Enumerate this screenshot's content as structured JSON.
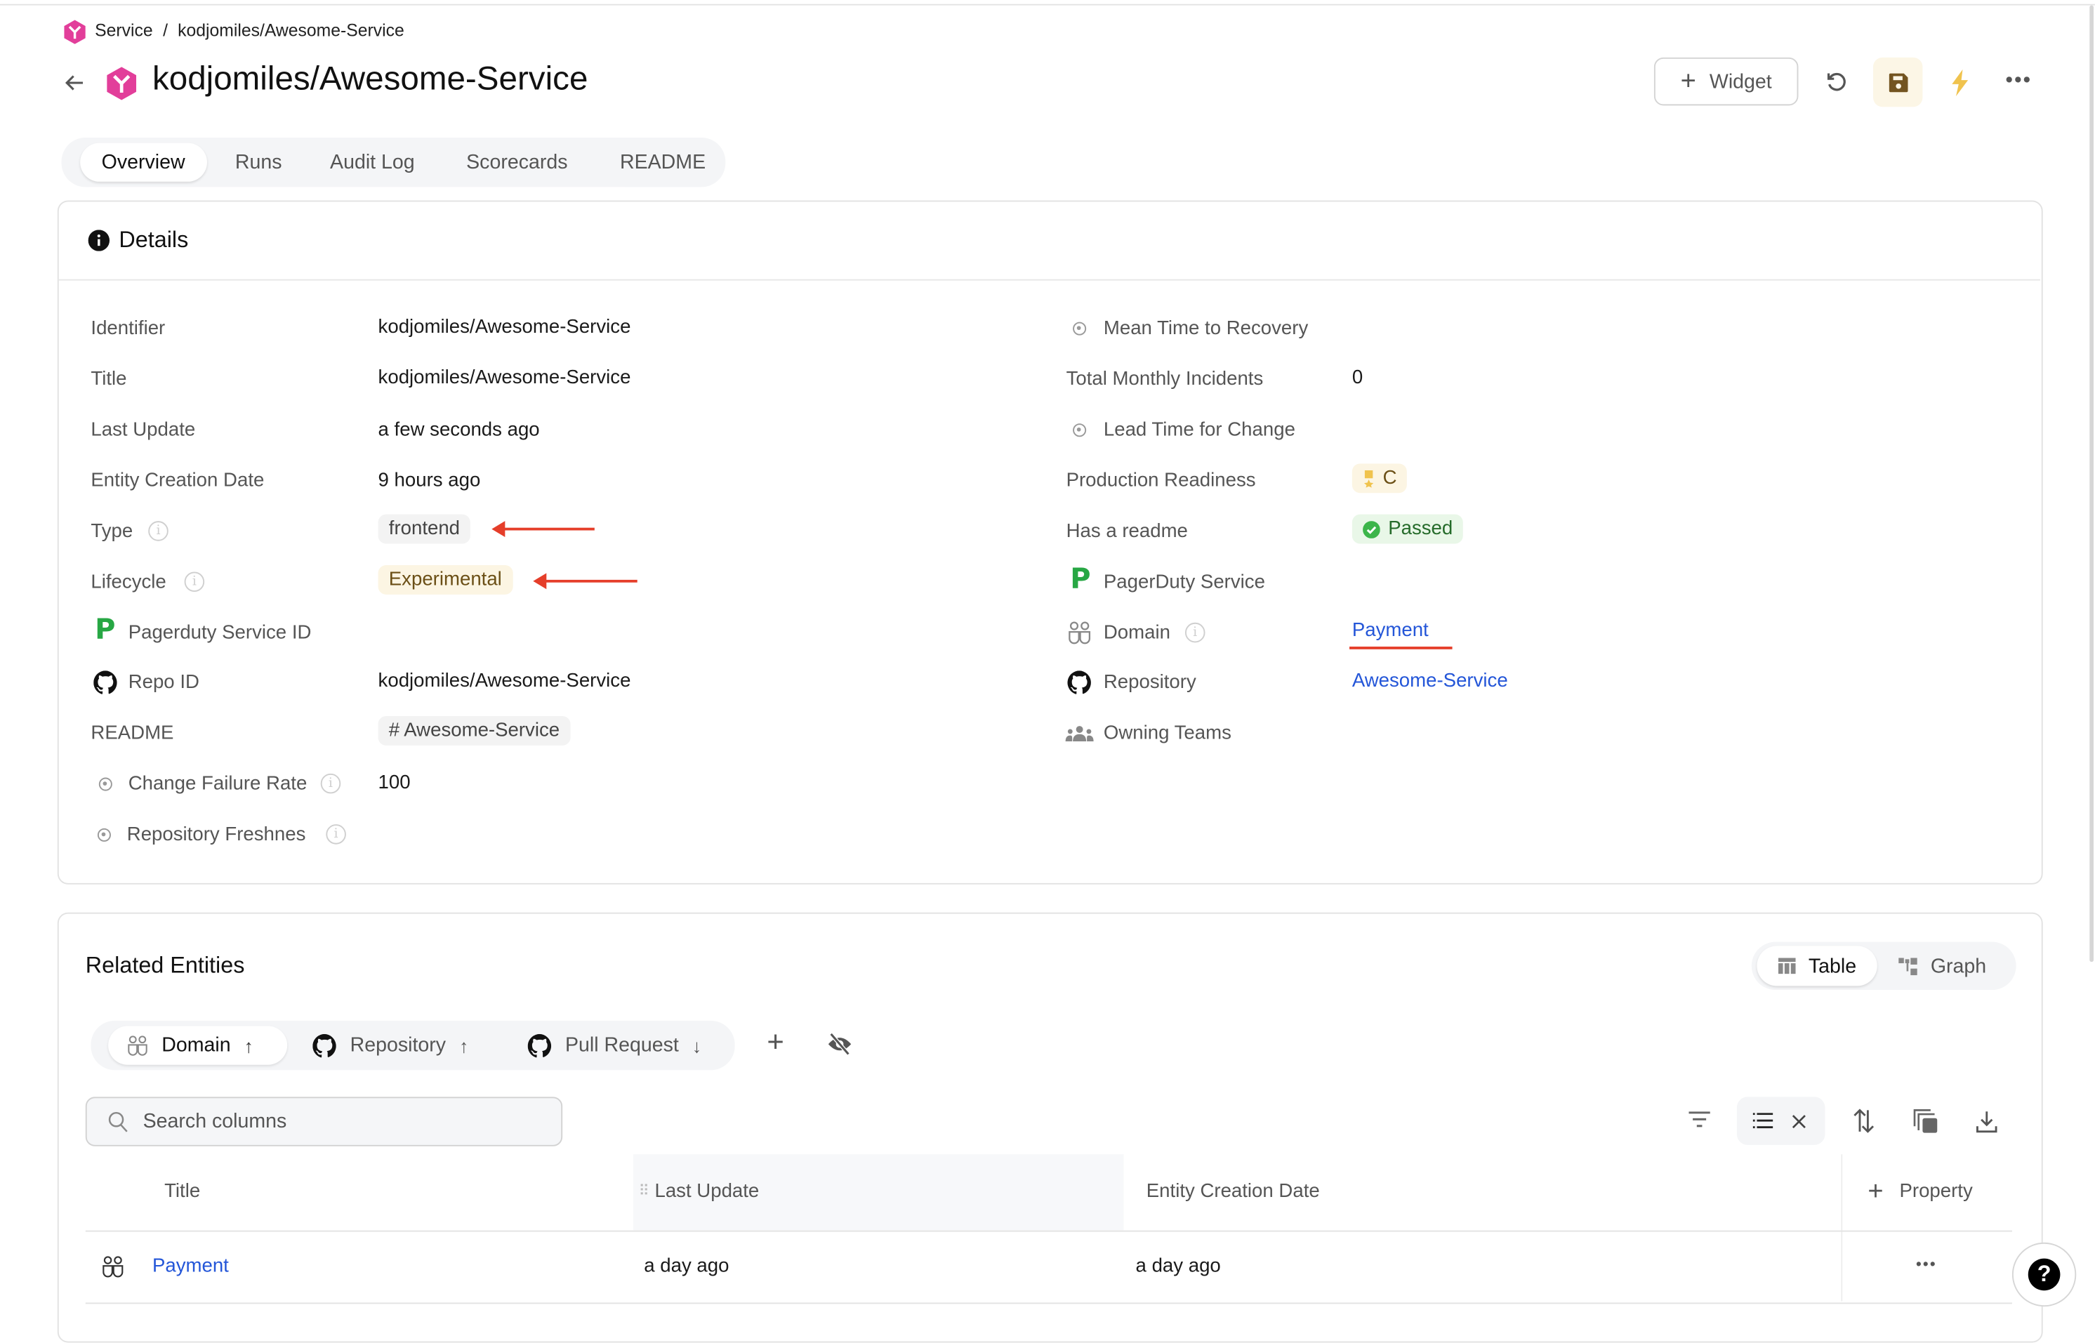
{
  "breadcrumb": {
    "parent": "Service",
    "separator": "/",
    "current": "kodjomiles/Awesome-Service"
  },
  "header": {
    "title": "kodjomiles/Awesome-Service",
    "widget_label": "Widget"
  },
  "tabs": [
    {
      "label": "Overview",
      "active": true
    },
    {
      "label": "Runs"
    },
    {
      "label": "Audit Log"
    },
    {
      "label": "Scorecards"
    },
    {
      "label": "README"
    }
  ],
  "details": {
    "title": "Details",
    "left": [
      {
        "label": "Identifier",
        "value": "kodjomiles/Awesome-Service"
      },
      {
        "label": "Title",
        "value": "kodjomiles/Awesome-Service"
      },
      {
        "label": "Last Update",
        "value": "a few seconds ago"
      },
      {
        "label": "Entity Creation Date",
        "value": "9 hours ago"
      },
      {
        "label": "Type",
        "value": "frontend"
      },
      {
        "label": "Lifecycle",
        "value": "Experimental"
      },
      {
        "label": "Pagerduty Service ID",
        "value": ""
      },
      {
        "label": "Repo ID",
        "value": "kodjomiles/Awesome-Service"
      },
      {
        "label": "README",
        "value": "# Awesome-Service"
      },
      {
        "label": "Change Failure Rate",
        "value": "100"
      },
      {
        "label": "Repository Freshnes",
        "value": ""
      }
    ],
    "right": [
      {
        "label": "Mean Time to Recovery",
        "value": ""
      },
      {
        "label": "Total Monthly Incidents",
        "value": "0"
      },
      {
        "label": "Lead Time for Change",
        "value": ""
      },
      {
        "label": "Production Readiness",
        "value": "C"
      },
      {
        "label": "Has a readme",
        "value": "Passed"
      },
      {
        "label": "PagerDuty Service",
        "value": ""
      },
      {
        "label": "Domain",
        "value": "Payment"
      },
      {
        "label": "Repository",
        "value": "Awesome-Service"
      },
      {
        "label": "Owning Teams",
        "value": ""
      }
    ]
  },
  "related": {
    "title": "Related Entities",
    "view_toggle": [
      {
        "label": "Table",
        "active": true
      },
      {
        "label": "Graph"
      }
    ],
    "chips": [
      {
        "label": "Domain",
        "direction": "up",
        "active": true
      },
      {
        "label": "Repository",
        "direction": "up"
      },
      {
        "label": "Pull Request",
        "direction": "down"
      }
    ],
    "search_placeholder": "Search columns",
    "columns": [
      "Title",
      "Last Update",
      "Entity Creation Date"
    ],
    "add_property_label": "Property",
    "rows": [
      {
        "title": "Payment",
        "last_update": "a day ago",
        "creation_date": "a day ago"
      }
    ]
  },
  "colors": {
    "accent_pink": "#e23e9a",
    "link_blue": "#2456d8",
    "annotation_red": "#e53e2a",
    "pagerduty_green": "#27a744",
    "experimental_bg": "#fcf5e3",
    "passed_bg": "#e9f7e8"
  }
}
